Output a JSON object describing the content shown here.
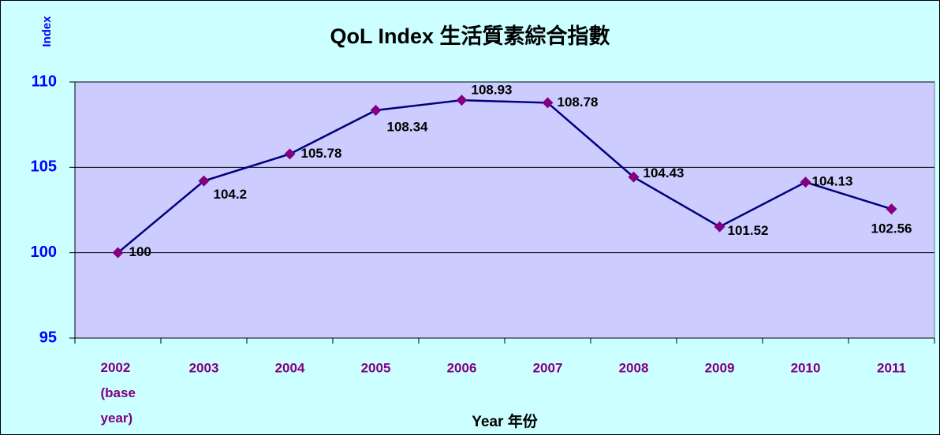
{
  "chart_data": {
    "type": "line",
    "title": "QoL Index 生活質素綜合指數",
    "x_label": "Year 年份",
    "y_label": "Index",
    "categories": [
      "2002 (base year)",
      "2003",
      "2004",
      "2005",
      "2006",
      "2007",
      "2008",
      "2009",
      "2010",
      "2011"
    ],
    "series": [
      {
        "name": "QoL Index",
        "color": "#000080",
        "marker_color": "#800080",
        "values": [
          100,
          104.2,
          105.78,
          108.34,
          108.93,
          108.78,
          104.43,
          101.52,
          104.13,
          102.56
        ]
      }
    ],
    "ylim": [
      95,
      110
    ],
    "yticks": [
      95,
      100,
      105,
      110
    ],
    "grid": true,
    "legend": false
  }
}
